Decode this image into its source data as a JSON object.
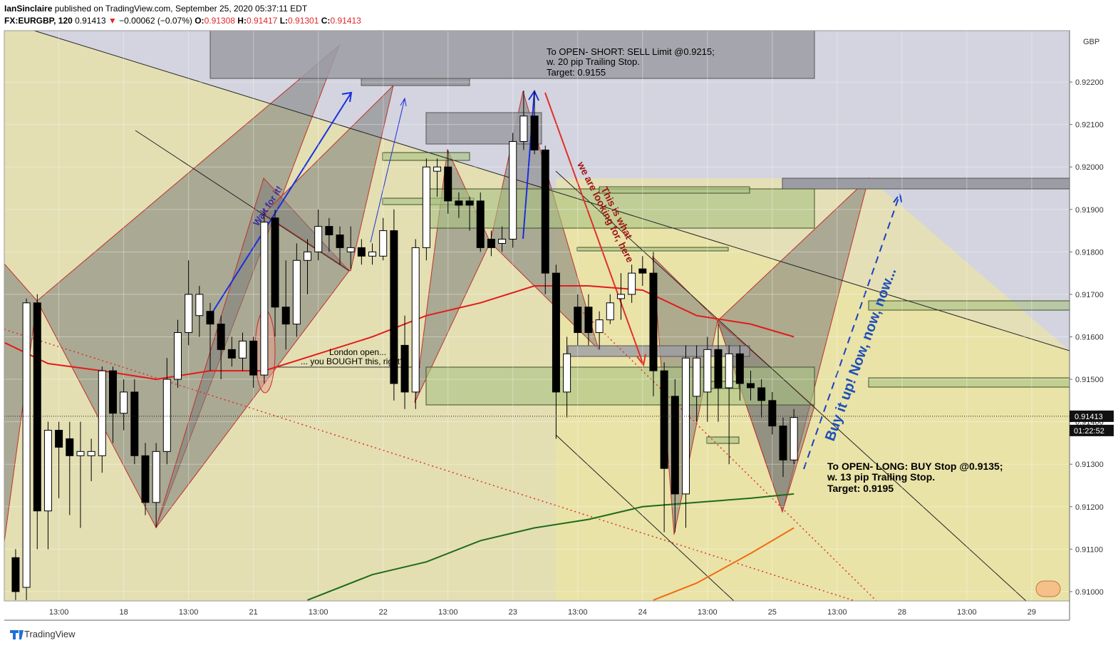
{
  "header": {
    "author": "IanSinclaire",
    "published": "published on TradingView.com, September 25, 2020 05:37:11 EDT",
    "symbol": "FX:EURGBP, 120",
    "price": 0.91413,
    "arrow": "▼",
    "change": "−0.00062 (−0.07%)",
    "o_label": "O:",
    "open": 0.91308,
    "h_label": "H:",
    "high": 0.91417,
    "l_label": "L:",
    "low": 0.91301,
    "c_label": "C:",
    "close": 0.91413
  },
  "chart_data": {
    "type": "candlestick",
    "currency": "GBP",
    "ylim": [
      0.90978,
      0.92321
    ],
    "yticks": [
      {
        "value": 0.91,
        "label": "0.91000"
      },
      {
        "value": 0.911,
        "label": "0.91100"
      },
      {
        "value": 0.912,
        "label": "0.91200"
      },
      {
        "value": 0.913,
        "label": "0.91300"
      },
      {
        "value": 0.914,
        "label": "0.91400"
      },
      {
        "value": 0.915,
        "label": "0.91500"
      },
      {
        "value": 0.916,
        "label": "0.91600"
      },
      {
        "value": 0.917,
        "label": "0.91700"
      },
      {
        "value": 0.918,
        "label": "0.91800"
      },
      {
        "value": 0.919,
        "label": "0.91900"
      },
      {
        "value": 0.92,
        "label": "0.92000"
      },
      {
        "value": 0.921,
        "label": "0.92100"
      },
      {
        "value": 0.922,
        "label": "0.92200"
      }
    ],
    "xlim": [
      -1.05,
      97.5
    ],
    "xticks": [
      {
        "value": 4,
        "label": "13:00"
      },
      {
        "value": 10,
        "label": "18"
      },
      {
        "value": 16,
        "label": "13:00"
      },
      {
        "value": 22,
        "label": "21"
      },
      {
        "value": 28,
        "label": "13:00"
      },
      {
        "value": 34,
        "label": "22"
      },
      {
        "value": 40,
        "label": "13:00"
      },
      {
        "value": 46,
        "label": "23"
      },
      {
        "value": 52,
        "label": "13:00"
      },
      {
        "value": 58,
        "label": "24"
      },
      {
        "value": 64,
        "label": "13:00"
      },
      {
        "value": 70,
        "label": "25"
      },
      {
        "value": 76,
        "label": "13:00"
      },
      {
        "value": 82,
        "label": "28"
      },
      {
        "value": 88,
        "label": "13:00"
      },
      {
        "value": 94,
        "label": "29"
      }
    ],
    "up_color": "#ffffff",
    "down_color": "#000000",
    "candles": {
      "x": [
        0,
        1,
        2,
        3,
        4,
        5,
        6,
        7,
        8,
        9,
        10,
        11,
        12,
        13,
        14,
        15,
        16,
        17,
        18,
        19,
        20,
        21,
        22,
        23,
        24,
        25,
        26,
        27,
        28,
        29,
        30,
        31,
        32,
        33,
        34,
        35,
        36,
        37,
        38,
        39,
        40,
        41,
        42,
        43,
        44,
        45,
        46,
        47,
        48,
        49,
        50,
        51,
        52,
        53,
        54,
        55,
        56,
        57,
        58,
        59,
        60,
        61,
        62,
        63,
        64,
        65,
        66,
        67,
        68,
        69,
        70,
        71,
        72
      ],
      "open": [
        0.9108,
        0.9101,
        0.9168,
        0.9119,
        0.9138,
        0.9136,
        0.9132,
        0.9132,
        0.9132,
        0.9152,
        0.9142,
        0.9147,
        0.9132,
        0.9121,
        0.9133,
        0.915,
        0.9161,
        0.9165,
        0.9166,
        0.9163,
        0.9157,
        0.9155,
        0.9159,
        0.9151,
        0.9188,
        0.9167,
        0.9163,
        0.9178,
        0.918,
        0.9186,
        0.9184,
        0.918,
        0.9181,
        0.9179,
        0.9179,
        0.9185,
        0.9158,
        0.9147,
        0.9181,
        0.9199,
        0.92,
        0.9192,
        0.9192,
        0.9192,
        0.9183,
        0.9182,
        0.9183,
        0.9206,
        0.9212,
        0.9204,
        0.9175,
        0.9147,
        0.9167,
        0.9167,
        0.9161,
        0.9164,
        0.9169,
        0.917,
        0.9176,
        0.9175,
        0.9152,
        0.9146,
        0.9123,
        0.9146,
        0.9147,
        0.9157,
        0.9148,
        0.9156,
        0.9149,
        0.9148,
        0.9145,
        0.9139,
        0.9131
      ],
      "high": [
        0.911,
        0.9169,
        0.917,
        0.914,
        0.914,
        0.914,
        0.914,
        0.9136,
        0.9153,
        0.9153,
        0.915,
        0.915,
        0.9135,
        0.9135,
        0.9155,
        0.9164,
        0.9178,
        0.9172,
        0.9168,
        0.9165,
        0.916,
        0.9161,
        0.916,
        0.919,
        0.919,
        0.9178,
        0.9182,
        0.9183,
        0.919,
        0.9188,
        0.9186,
        0.9186,
        0.9183,
        0.9182,
        0.9188,
        0.919,
        0.9165,
        0.9183,
        0.9202,
        0.9202,
        0.9204,
        0.9194,
        0.9193,
        0.9194,
        0.9185,
        0.9186,
        0.9208,
        0.9218,
        0.9218,
        0.9205,
        0.9177,
        0.916,
        0.917,
        0.917,
        0.9166,
        0.917,
        0.9175,
        0.9177,
        0.9179,
        0.918,
        0.9154,
        0.915,
        0.9158,
        0.9158,
        0.916,
        0.9163,
        0.9158,
        0.9158,
        0.9152,
        0.915,
        0.9147,
        0.9141,
        0.9143
      ],
      "low": [
        0.9098,
        0.9098,
        0.911,
        0.911,
        0.9122,
        0.9118,
        0.9115,
        0.9126,
        0.9128,
        0.9135,
        0.9138,
        0.913,
        0.9118,
        0.9115,
        0.913,
        0.9148,
        0.9158,
        0.916,
        0.9152,
        0.915,
        0.9153,
        0.9152,
        0.9148,
        0.9149,
        0.916,
        0.9157,
        0.916,
        0.917,
        0.9178,
        0.918,
        0.9177,
        0.9176,
        0.9177,
        0.9177,
        0.9178,
        0.9145,
        0.9143,
        0.9143,
        0.9178,
        0.9193,
        0.9189,
        0.9188,
        0.9185,
        0.918,
        0.9179,
        0.918,
        0.9181,
        0.9204,
        0.9203,
        0.917,
        0.9136,
        0.9141,
        0.9158,
        0.9158,
        0.9157,
        0.9163,
        0.9164,
        0.9168,
        0.9172,
        0.9146,
        0.9114,
        0.9114,
        0.9115,
        0.914,
        0.914,
        0.914,
        0.913,
        0.9145,
        0.9145,
        0.9141,
        0.9137,
        0.9127,
        0.913
      ],
      "close": [
        0.91,
        0.9168,
        0.9119,
        0.9138,
        0.9134,
        0.9132,
        0.9133,
        0.9133,
        0.9152,
        0.9142,
        0.9147,
        0.9132,
        0.9121,
        0.9133,
        0.915,
        0.9161,
        0.917,
        0.917,
        0.9163,
        0.9157,
        0.9155,
        0.9159,
        0.9151,
        0.9187,
        0.9167,
        0.9163,
        0.9178,
        0.918,
        0.9186,
        0.9184,
        0.9181,
        0.9181,
        0.9179,
        0.918,
        0.9185,
        0.9149,
        0.9147,
        0.9181,
        0.92,
        0.92,
        0.9192,
        0.9191,
        0.9191,
        0.9181,
        0.9181,
        0.9183,
        0.9206,
        0.9212,
        0.9204,
        0.9175,
        0.9147,
        0.9156,
        0.9161,
        0.9161,
        0.9164,
        0.9168,
        0.917,
        0.9175,
        0.9175,
        0.9152,
        0.9129,
        0.9123,
        0.9155,
        0.9155,
        0.9157,
        0.9148,
        0.9156,
        0.9149,
        0.9148,
        0.9145,
        0.9139,
        0.9131,
        0.9141
      ]
    },
    "lines": [
      {
        "color": "#e31b1b",
        "x": [
          -1,
          3,
          8,
          13,
          18,
          23,
          28,
          33,
          38,
          43,
          48,
          53,
          58,
          63,
          68,
          72
        ],
        "values": [
          0.91586,
          0.91537,
          0.9152,
          0.915,
          0.9152,
          0.9152,
          0.9156,
          0.916,
          0.9165,
          0.9168,
          0.9172,
          0.9172,
          0.9171,
          0.9165,
          0.9163,
          0.916
        ]
      },
      {
        "color": "#1f6b1a",
        "x": [
          27,
          33,
          38,
          43,
          48,
          53,
          58,
          63,
          68,
          72
        ],
        "values": [
          0.9098,
          0.9104,
          0.9107,
          0.9112,
          0.9115,
          0.9117,
          0.912,
          0.9121,
          0.9122,
          0.9123
        ]
      },
      {
        "color": "#f26b0f",
        "x": [
          59,
          63,
          68,
          72
        ],
        "values": [
          0.9098,
          0.9102,
          0.9109,
          0.9115
        ]
      }
    ],
    "last_price": 0.91413,
    "timer": "01:22:52"
  },
  "annotations": {
    "short": [
      "To OPEN- SHORT: SELL Limit @0.9215;",
      "w. 20 pip Trailing Stop.",
      "Target: 0.9155"
    ],
    "long": [
      "To OPEN- LONG: BUY Stop @0.9135;",
      "w. 13 pip Trailing Stop.",
      "Target: 0.9195"
    ],
    "wait": "Wait for it!",
    "looking": "we are looking for, here",
    "this_is": "This is what",
    "london": "London open...",
    "bought": "... you BOUGHT this, right?!",
    "buy": "Buy it up! Now, now, now..."
  },
  "footer": {
    "brand": "TradingView"
  }
}
